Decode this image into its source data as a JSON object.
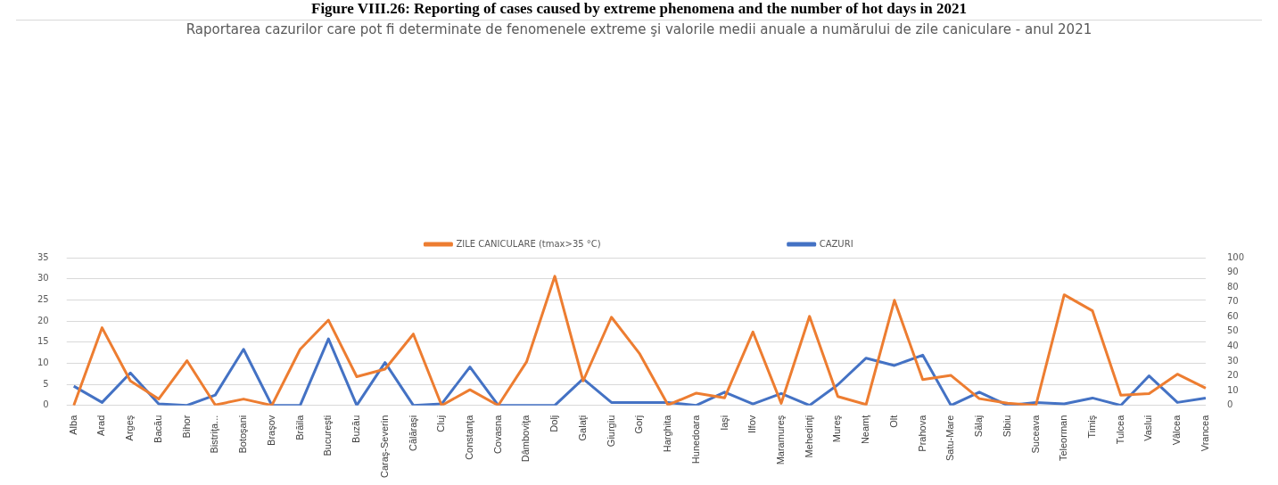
{
  "chart_data": {
    "type": "line",
    "title": "Figure VIII.26: Reporting of cases caused by extreme phenomena and the number of hot days in 2021",
    "subtitle": "Raportarea cazurilor care pot fi determinate de fenomenele extreme şi valorile medii anuale a numărului de zile caniculare - anul 2021",
    "categories": [
      "Alba",
      "Arad",
      "Argeş",
      "Bacău",
      "Bihor",
      "Bistriţa...",
      "Botoşani",
      "Braşov",
      "Brăila",
      "Bucureşti",
      "Buzău",
      "Caraş-Severin",
      "Călăraşi",
      "Cluj",
      "Constanţa",
      "Covasna",
      "Dâmboviţa",
      "Dolj",
      "Galaţi",
      "Giurgiu",
      "Gorj",
      "Harghita",
      "Hunedoara",
      "Iaşi",
      "Ilfov",
      "Maramureş",
      "Mehedinţi",
      "Mureş",
      "Neamţ",
      "Olt",
      "Prahova",
      "Satu-Mare",
      "Sălaj",
      "Sibiu",
      "Suceava",
      "Teleorman",
      "Timiş",
      "Tulcea",
      "Vaslui",
      "Vâlcea",
      "Vrancea"
    ],
    "series": [
      {
        "name": "ZILE CANICULARE (tmax>35 °C)",
        "color": "#ed7d31",
        "values": [
          0,
          18.4,
          5.8,
          1.5,
          10.6,
          0.1,
          1.5,
          0,
          13.3,
          20.2,
          6.8,
          8.6,
          16.9,
          0,
          3.7,
          0,
          10.3,
          30.6,
          5.8,
          20.9,
          12.2,
          0.1,
          2.9,
          1.8,
          17.4,
          0.5,
          21.1,
          2.1,
          0.2,
          24.9,
          6.1,
          7.1,
          1.6,
          0.5,
          0,
          26.2,
          22.4,
          2.4,
          2.8,
          7.4,
          4.1
        ]
      },
      {
        "name": "CAZURI",
        "color": "#4472c4",
        "axis": "y2",
        "values": [
          13,
          2,
          22,
          1,
          0,
          7,
          38,
          0,
          0,
          45,
          0,
          29,
          0,
          1,
          26,
          0,
          0,
          0,
          18,
          2,
          2,
          2,
          0,
          9,
          1,
          8,
          0,
          14,
          32,
          27,
          34,
          0,
          9,
          0,
          2,
          1,
          5,
          0,
          20,
          2,
          5
        ]
      }
    ],
    "ylim": [
      0,
      35
    ],
    "yticks": [
      0,
      5,
      10,
      15,
      20,
      25,
      30,
      35
    ],
    "y2lim": [
      0,
      100
    ],
    "y2ticks": [
      0,
      10,
      20,
      30,
      40,
      50,
      60,
      70,
      80,
      90,
      100
    ],
    "grid": "y",
    "legend": "top",
    "marker": "none",
    "line_style": "solid"
  }
}
